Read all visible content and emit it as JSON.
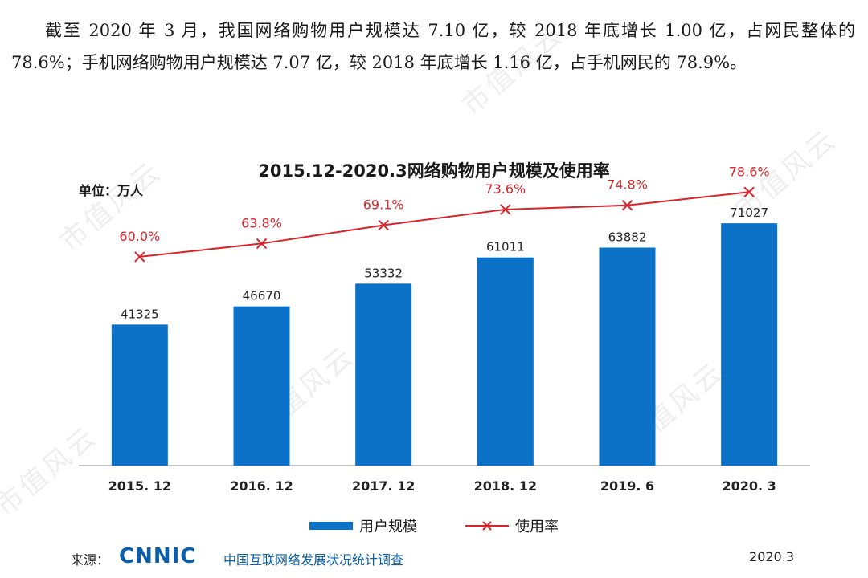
{
  "intro_text": "截至 2020 年 3 月，我国网络购物用户规模达 7.10 亿，较 2018 年底增长 1.00 亿，占网民整体的 78.6%；手机网络购物用户规模达 7.07 亿，较 2018 年底增长 1.16 亿，占手机网民的 78.9%。",
  "watermark_text": "市值风云",
  "chart_data": {
    "type": "bar",
    "title": "2015.12-2020.3网络购物用户规模及使用率",
    "unit_label": "单位：万人",
    "categories": [
      "2015. 12",
      "2016. 12",
      "2017. 12",
      "2018. 12",
      "2019. 6",
      "2020. 3"
    ],
    "series": [
      {
        "name": "用户规模",
        "type": "bar",
        "values": [
          41325,
          46670,
          53332,
          61011,
          63882,
          71027
        ],
        "color": "#0b72c8"
      },
      {
        "name": "使用率",
        "type": "line",
        "values": [
          60.0,
          63.8,
          69.1,
          73.6,
          74.8,
          78.6
        ],
        "value_labels": [
          "60.0%",
          "63.8%",
          "69.1%",
          "73.6%",
          "74.8%",
          "78.6%"
        ],
        "color": "#d9232a"
      }
    ],
    "bar_ylim": [
      0,
      80000
    ],
    "line_ylim": [
      0,
      120
    ],
    "legend_position": "bottom"
  },
  "source": {
    "label": "来源：",
    "logo": "CNNIC",
    "org": "中国互联网络发展状况统计调查",
    "date": "2020.3"
  }
}
